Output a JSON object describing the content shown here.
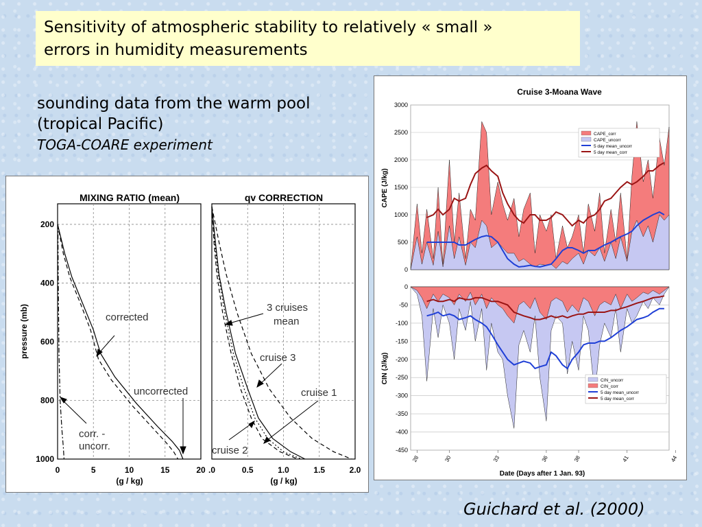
{
  "title_box": {
    "line1": "Sensitivity of atmospheric stability to relatively « small »",
    "line2": "errors in humidity measurements"
  },
  "subtitle": {
    "line1": "sounding data from the warm pool",
    "line2": "(tropical Pacific)",
    "line3": "TOGA-COARE experiment"
  },
  "citation": "Guichard et al. (2000)",
  "chart_data": [
    {
      "type": "line",
      "title": "MIXING  RATIO  (mean)",
      "xlabel": "(g / kg)",
      "ylabel": "pressure (mb)",
      "xlim": [
        0,
        20
      ],
      "ylim": [
        1000,
        130
      ],
      "x_ticks": [
        "0",
        "5",
        "10",
        "15",
        "20"
      ],
      "y_ticks": [
        "200",
        "400",
        "600",
        "800",
        "1000"
      ],
      "annotations": [
        "corrected",
        "uncorrected",
        "corr. -",
        "uncorr."
      ],
      "series": [
        {
          "name": "corrected",
          "style": "solid",
          "points": [
            [
              0,
              200
            ],
            [
              1,
              300
            ],
            [
              2,
              380
            ],
            [
              3.5,
              470
            ],
            [
              5,
              560
            ],
            [
              6,
              640
            ],
            [
              8,
              720
            ],
            [
              11,
              810
            ],
            [
              14,
              890
            ],
            [
              16,
              940
            ],
            [
              17,
              970
            ],
            [
              17.5,
              1000
            ]
          ]
        },
        {
          "name": "uncorrected",
          "style": "dashed",
          "points": [
            [
              0,
              200
            ],
            [
              0.8,
              300
            ],
            [
              1.7,
              380
            ],
            [
              3.2,
              470
            ],
            [
              4.6,
              560
            ],
            [
              5.7,
              660
            ],
            [
              7.5,
              730
            ],
            [
              10.5,
              820
            ],
            [
              13.5,
              900
            ],
            [
              15.2,
              945
            ],
            [
              16.2,
              975
            ],
            [
              16.8,
              1000
            ]
          ]
        },
        {
          "name": "corr. - uncorr.",
          "style": "dashdot",
          "points": [
            [
              0.05,
              200
            ],
            [
              0.1,
              400
            ],
            [
              0.2,
              650
            ],
            [
              0.35,
              800
            ],
            [
              0.6,
              900
            ],
            [
              0.8,
              960
            ],
            [
              0.9,
              1000
            ]
          ]
        }
      ]
    },
    {
      "type": "line",
      "title": "qv CORRECTION",
      "xlabel": "(g / kg)",
      "xlim": [
        0,
        2
      ],
      "ylim": [
        1000,
        130
      ],
      "x_ticks": [
        ".0",
        "0.5",
        "1.0",
        "1.5",
        "2.0"
      ],
      "annotations": [
        "3 cruises",
        "mean",
        "cruise 3",
        "cruise 1",
        "cruise 2"
      ],
      "series": [
        {
          "name": "cruise 1",
          "style": "dashed",
          "points": [
            [
              0,
              140
            ],
            [
              0.1,
              260
            ],
            [
              0.2,
              370
            ],
            [
              0.35,
              500
            ],
            [
              0.55,
              640
            ],
            [
              0.8,
              760
            ],
            [
              1.1,
              860
            ],
            [
              1.4,
              930
            ],
            [
              1.7,
              975
            ],
            [
              1.95,
              1000
            ]
          ]
        },
        {
          "name": "cruise 3",
          "style": "solid",
          "points": [
            [
              0,
              140
            ],
            [
              0.05,
              260
            ],
            [
              0.1,
              370
            ],
            [
              0.2,
              500
            ],
            [
              0.33,
              640
            ],
            [
              0.5,
              760
            ],
            [
              0.65,
              860
            ],
            [
              0.85,
              930
            ],
            [
              1.1,
              975
            ],
            [
              1.3,
              1000
            ]
          ]
        },
        {
          "name": "cruise 2",
          "style": "dashed",
          "points": [
            [
              0,
              140
            ],
            [
              0.03,
              260
            ],
            [
              0.07,
              370
            ],
            [
              0.15,
              500
            ],
            [
              0.27,
              640
            ],
            [
              0.4,
              760
            ],
            [
              0.55,
              860
            ],
            [
              0.7,
              930
            ],
            [
              0.95,
              975
            ],
            [
              1.2,
              1000
            ]
          ]
        },
        {
          "name": "3 cruises mean",
          "style": "dotted",
          "points": [
            [
              0,
              140
            ],
            [
              0.04,
              260
            ],
            [
              0.09,
              370
            ],
            [
              0.18,
              500
            ],
            [
              0.3,
              640
            ],
            [
              0.45,
              760
            ],
            [
              0.6,
              860
            ],
            [
              0.78,
              930
            ],
            [
              1.0,
              975
            ],
            [
              1.25,
              1000
            ]
          ]
        }
      ]
    },
    {
      "type": "area",
      "title": "Cruise 3-Moana Wave",
      "ylabel": "CAPE (J/kg)",
      "ylim": [
        0,
        3000
      ],
      "y_ticks": [
        "0",
        "500",
        "1000",
        "1500",
        "2000",
        "2500",
        "3000"
      ],
      "legend_position": "top-right",
      "legend": [
        "CAPE_corr",
        "CAPE_uncorr",
        "5 day mean_uncorr",
        "5 day mean_corr"
      ],
      "x": [
        27.6,
        28,
        28.3,
        28.6,
        29,
        29.3,
        29.6,
        30,
        30.3,
        30.6,
        31,
        31.3,
        31.6,
        32,
        32.3,
        32.6,
        33,
        33.3,
        33.6,
        34,
        34.3,
        34.6,
        35,
        35.3,
        35.6,
        36,
        36.3,
        36.6,
        37,
        37.3,
        37.6,
        38,
        38.3,
        38.6,
        39,
        39.3,
        39.6,
        40,
        40.3,
        40.6,
        41,
        41.3,
        41.6,
        42,
        42.3,
        42.6,
        43,
        43.3,
        43.6
      ],
      "series": [
        {
          "name": "CAPE_corr",
          "values": [
            0,
            1200,
            300,
            1100,
            200,
            1500,
            100,
            2000,
            500,
            1400,
            200,
            1100,
            900,
            2700,
            2500,
            1000,
            1600,
            1200,
            900,
            1300,
            600,
            1100,
            1400,
            300,
            1000,
            700,
            1000,
            200,
            800,
            400,
            600,
            1000,
            300,
            1200,
            700,
            1400,
            300,
            1100,
            500,
            1400,
            200,
            1700,
            2700,
            1600,
            2000,
            1300,
            2400,
            1900,
            2600
          ]
        },
        {
          "name": "CAPE_uncorr",
          "values": [
            0,
            600,
            100,
            500,
            80,
            700,
            50,
            800,
            200,
            600,
            80,
            500,
            400,
            900,
            800,
            400,
            500,
            400,
            300,
            300,
            150,
            200,
            100,
            50,
            100,
            80,
            100,
            20,
            150,
            100,
            200,
            300,
            100,
            350,
            250,
            400,
            150,
            500,
            200,
            600,
            150,
            700,
            900,
            600,
            800,
            500,
            1000,
            900,
            1000
          ]
        },
        {
          "name": "5 day mean_uncorr",
          "values": [
            null,
            null,
            null,
            500,
            500,
            500,
            500,
            500,
            500,
            450,
            450,
            500,
            550,
            600,
            620,
            600,
            500,
            350,
            200,
            100,
            50,
            60,
            80,
            60,
            50,
            80,
            100,
            200,
            350,
            400,
            400,
            350,
            300,
            350,
            350,
            400,
            450,
            500,
            550,
            600,
            650,
            700,
            800,
            900,
            950,
            1000,
            1050,
            1000,
            null
          ]
        },
        {
          "name": "5 day mean_corr",
          "values": [
            null,
            null,
            null,
            950,
            1000,
            1100,
            1000,
            1100,
            1300,
            1250,
            1300,
            1550,
            1750,
            1850,
            1900,
            1800,
            1700,
            1400,
            1200,
            1000,
            900,
            850,
            1000,
            1000,
            900,
            900,
            950,
            1050,
            1000,
            900,
            800,
            900,
            850,
            950,
            1000,
            1100,
            1250,
            1300,
            1400,
            1500,
            1600,
            1550,
            1600,
            1700,
            1800,
            1800,
            1900,
            1950,
            null
          ]
        }
      ]
    },
    {
      "type": "area",
      "ylabel": "CIN (J/kg)",
      "xlabel": "Date (Days after 1 Jan. 93)",
      "ylim": [
        -450,
        0
      ],
      "y_ticks": [
        "0",
        "-50",
        "-100",
        "-150",
        "-200",
        "-250",
        "-300",
        "-350",
        "-400",
        "-450"
      ],
      "x_ticks": [
        "28",
        "30",
        "33",
        "36",
        "38",
        "41",
        "44"
      ],
      "legend_position": "bottom-right",
      "legend": [
        "CIN_uncorr",
        "CIN_corr",
        "5 day mean_uncorr",
        "5 day mean_corr"
      ],
      "x": [
        27.6,
        28,
        28.3,
        28.6,
        29,
        29.3,
        29.6,
        30,
        30.3,
        30.6,
        31,
        31.3,
        31.6,
        32,
        32.3,
        32.6,
        33,
        33.3,
        33.6,
        34,
        34.3,
        34.6,
        35,
        35.3,
        35.6,
        36,
        36.3,
        36.6,
        37,
        37.3,
        37.6,
        38,
        38.3,
        38.6,
        39,
        39.3,
        39.6,
        40,
        40.3,
        40.6,
        41,
        41.3,
        41.6,
        42,
        42.3,
        42.6,
        43,
        43.3,
        43.6
      ],
      "series": [
        {
          "name": "CIN_uncorr",
          "values": [
            0,
            -20,
            -80,
            -260,
            -60,
            -140,
            -50,
            -100,
            -200,
            -60,
            -120,
            -40,
            -150,
            -60,
            -230,
            -100,
            -180,
            -200,
            -300,
            -390,
            -160,
            -120,
            -180,
            -80,
            -250,
            -370,
            -120,
            -80,
            -100,
            -240,
            -150,
            -230,
            -80,
            -120,
            -300,
            -160,
            -100,
            -140,
            -60,
            -180,
            -60,
            -100,
            -80,
            -40,
            -60,
            -30,
            -50,
            -20,
            0
          ]
        },
        {
          "name": "CIN_corr",
          "values": [
            0,
            -10,
            -30,
            -60,
            -20,
            -40,
            -20,
            -30,
            -50,
            -20,
            -40,
            -15,
            -50,
            -20,
            -60,
            -30,
            -50,
            -60,
            -80,
            -100,
            -50,
            -40,
            -60,
            -30,
            -70,
            -90,
            -40,
            -30,
            -40,
            -70,
            -50,
            -70,
            -30,
            -40,
            -80,
            -50,
            -40,
            -50,
            -20,
            -60,
            -20,
            -40,
            -30,
            -15,
            -20,
            -10,
            -20,
            -10,
            0
          ]
        },
        {
          "name": "5 day mean_uncorr",
          "values": [
            null,
            null,
            null,
            -80,
            -75,
            -70,
            -80,
            -75,
            -80,
            -90,
            -85,
            -80,
            -90,
            -100,
            -110,
            -130,
            -160,
            -180,
            -200,
            -215,
            -210,
            -205,
            -210,
            -225,
            -220,
            -215,
            -180,
            -190,
            -215,
            -225,
            -200,
            -180,
            -160,
            -155,
            -155,
            -150,
            -150,
            -140,
            -130,
            -120,
            -110,
            -100,
            -90,
            -85,
            -80,
            -70,
            -60,
            -60,
            null
          ]
        },
        {
          "name": "5 day mean_corr",
          "values": [
            null,
            null,
            null,
            -40,
            -35,
            -40,
            -40,
            -35,
            -40,
            -30,
            -35,
            -35,
            -30,
            -30,
            -35,
            -40,
            -40,
            -45,
            -50,
            -70,
            -75,
            -80,
            -85,
            -90,
            -90,
            -85,
            -80,
            -85,
            -80,
            -85,
            -80,
            -75,
            -75,
            -70,
            -70,
            -70,
            -70,
            -65,
            -65,
            -60,
            -55,
            -50,
            -45,
            -40,
            -35,
            -30,
            -28,
            -25,
            null
          ]
        }
      ]
    }
  ]
}
